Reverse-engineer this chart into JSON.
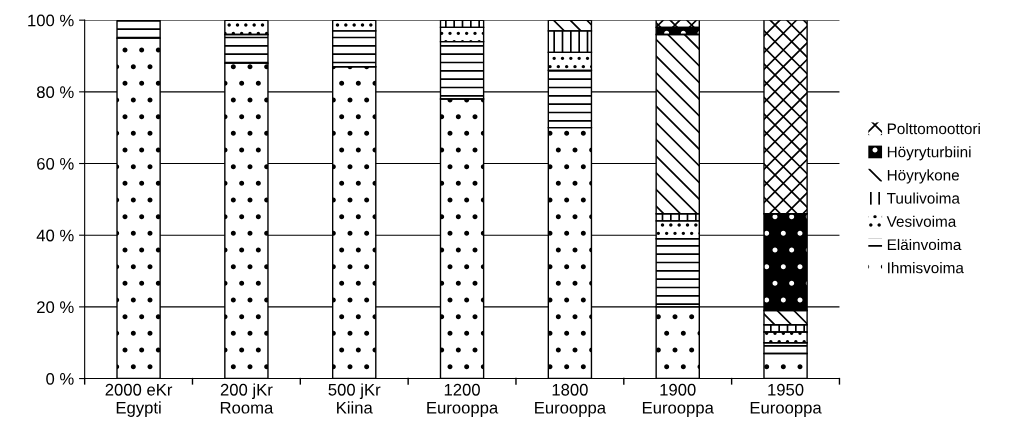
{
  "chart_data": {
    "type": "bar",
    "stacked": true,
    "categories": [
      "2000 eKr\nEgypti",
      "200 jKr\nRooma",
      "500 jKr\nKiina",
      "1200\nEurooppa",
      "1800\nEurooppa",
      "1900\nEurooppa",
      "1950\nEurooppa"
    ],
    "series": [
      {
        "name": "Ihmisvoima",
        "color": "#ffffff",
        "values": [
          95,
          88,
          87,
          78,
          70,
          20,
          7
        ]
      },
      {
        "name": "Eläinvoima",
        "color": "#ffffff",
        "values": [
          5,
          8,
          10,
          16,
          16,
          19,
          3
        ]
      },
      {
        "name": "Vesivoima",
        "color": "#ffffff",
        "values": [
          0,
          4,
          3,
          4,
          5,
          5,
          3
        ]
      },
      {
        "name": "Tuulivoima",
        "color": "#ffffff",
        "values": [
          0,
          0,
          0,
          2,
          6,
          2,
          2
        ]
      },
      {
        "name": "Höyrykone",
        "color": "#ffffff",
        "values": [
          0,
          0,
          0,
          0,
          3,
          50,
          4
        ]
      },
      {
        "name": "Höyryturbiini",
        "color": "#000000",
        "values": [
          0,
          0,
          0,
          0,
          0,
          2,
          27
        ]
      },
      {
        "name": "Polttomoottori",
        "color": "#ffffff",
        "values": [
          0,
          0,
          0,
          0,
          0,
          2,
          54
        ]
      }
    ],
    "ylim": [
      0,
      100
    ],
    "yticks": [
      {
        "value": 0,
        "label": "0 %"
      },
      {
        "value": 20,
        "label": "20 %"
      },
      {
        "value": 40,
        "label": "40 %"
      },
      {
        "value": 60,
        "label": "60 %"
      },
      {
        "value": 80,
        "label": "80 %"
      },
      {
        "value": 100,
        "label": "100 %"
      }
    ],
    "grid": "y",
    "legend": "right"
  }
}
